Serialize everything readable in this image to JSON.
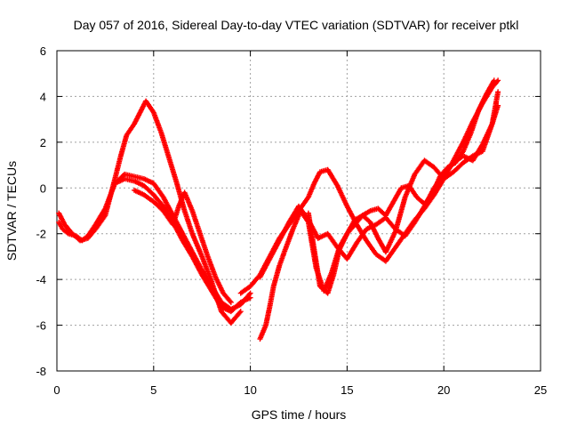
{
  "chart_data": {
    "type": "scatter",
    "title": "Day 057 of 2016, Sidereal Day-to-day VTEC variation (SDTVAR) for receiver ptkl",
    "xlabel": "GPS time / hours",
    "ylabel": "SDTVAR / TECUs",
    "xlim": [
      0,
      25
    ],
    "ylim": [
      -8,
      6
    ],
    "x_ticks": [
      "0",
      "5",
      "10",
      "15",
      "20",
      "25"
    ],
    "y_ticks": [
      "6",
      "4",
      "2",
      "0",
      "-2",
      "-4",
      "-6",
      "-8"
    ],
    "grid": true,
    "marker": "plus",
    "color": "#ff0000",
    "series": [
      {
        "x": [
          0.1,
          0.3,
          0.6,
          1.0,
          1.3,
          1.6,
          2.0,
          2.5,
          3.0,
          3.5,
          4.0,
          4.5,
          5.0,
          5.5,
          6.0,
          6.5,
          7.0,
          7.5,
          8.0,
          8.5,
          9.0,
          9.5,
          10.0
        ],
        "y": [
          -1.5,
          -1.8,
          -2.0,
          -2.1,
          -2.3,
          -2.1,
          -1.6,
          -0.9,
          0.2,
          0.4,
          0.3,
          0.1,
          -0.3,
          -0.8,
          -1.5,
          -2.3,
          -3.0,
          -3.8,
          -4.5,
          -5.2,
          -5.4,
          -5.0,
          -4.8
        ]
      },
      {
        "x": [
          0.1,
          0.4,
          0.8,
          1.2,
          1.6,
          2.0,
          2.5,
          3.0,
          3.3,
          3.6,
          4.0,
          4.3,
          4.6,
          5.0,
          5.4,
          5.8,
          6.2,
          6.6,
          7.0,
          7.5,
          8.0,
          8.5,
          9.0,
          9.5
        ],
        "y": [
          -1.1,
          -1.6,
          -2.0,
          -2.3,
          -2.2,
          -1.8,
          -1.2,
          0.4,
          1.4,
          2.3,
          2.8,
          3.3,
          3.8,
          3.3,
          2.4,
          1.3,
          0.2,
          -1.0,
          -2.0,
          -3.0,
          -4.1,
          -5.4,
          -5.9,
          -5.4
        ]
      },
      {
        "x": [
          3.0,
          3.5,
          4.0,
          4.5,
          5.0,
          5.5,
          6.0,
          6.5,
          7.0,
          7.5,
          8.0,
          8.5,
          9.0,
          9.5,
          10.0
        ],
        "y": [
          0.2,
          0.6,
          0.5,
          0.4,
          0.2,
          -0.4,
          -1.2,
          -2.0,
          -2.8,
          -3.6,
          -4.3,
          -5.0,
          -5.3,
          -5.1,
          -4.6
        ]
      },
      {
        "x": [
          4.0,
          4.5,
          5.0,
          5.5,
          6.0,
          6.3,
          6.6,
          7.0,
          7.4,
          7.8,
          8.2,
          8.6,
          9.0
        ],
        "y": [
          -0.1,
          -0.3,
          -0.6,
          -1.0,
          -1.6,
          -0.8,
          -0.2,
          -1.0,
          -2.0,
          -3.0,
          -3.9,
          -4.6,
          -5.0
        ]
      },
      {
        "x": [
          9.5,
          10.0,
          10.5,
          11.0,
          11.5,
          12.0,
          12.5,
          13.0,
          13.3,
          13.6,
          14.0,
          14.5,
          15.0,
          15.5,
          16.0,
          16.5,
          17.0,
          17.5,
          18.0,
          18.5,
          19.0,
          19.5,
          20.0,
          20.5,
          21.0,
          21.5,
          22.0,
          22.5,
          22.8
        ],
        "y": [
          -4.6,
          -4.3,
          -3.8,
          -3.0,
          -2.2,
          -1.6,
          -1.0,
          -0.4,
          0.2,
          0.7,
          0.8,
          0.1,
          -0.8,
          -1.6,
          -2.3,
          -2.9,
          -3.2,
          -2.6,
          -2.0,
          -1.4,
          -0.9,
          -0.3,
          0.4,
          1.2,
          2.0,
          2.9,
          3.7,
          4.4,
          4.7
        ]
      },
      {
        "x": [
          10.5,
          11.0,
          11.5,
          12.0,
          12.5,
          13.0,
          13.5,
          14.0,
          14.5,
          15.0,
          15.5,
          16.0,
          16.5,
          17.0,
          17.5,
          18.0,
          18.5,
          19.0,
          19.5,
          20.0,
          20.5,
          21.0,
          21.5,
          22.0,
          22.5,
          22.8
        ],
        "y": [
          -3.9,
          -3.1,
          -2.3,
          -1.5,
          -0.8,
          -1.4,
          -2.2,
          -2.0,
          -2.6,
          -3.1,
          -2.4,
          -1.8,
          -1.6,
          -1.3,
          -1.8,
          -2.1,
          -1.5,
          -0.8,
          0.0,
          0.6,
          1.1,
          1.4,
          1.2,
          1.9,
          2.8,
          3.6
        ]
      },
      {
        "x": [
          10.5,
          10.8,
          11.0,
          11.2,
          11.5,
          11.8,
          12.2,
          12.6,
          13.0,
          13.4,
          13.8,
          14.2,
          14.6,
          15.0,
          15.4,
          15.8,
          16.2,
          16.6,
          17.0,
          17.5,
          18.0,
          18.5,
          19.0,
          19.5,
          20.0,
          20.5,
          21.0,
          21.5,
          22.0,
          22.5,
          22.8
        ],
        "y": [
          -6.6,
          -6.0,
          -5.2,
          -4.3,
          -3.4,
          -2.7,
          -1.8,
          -1.0,
          -1.5,
          -3.5,
          -4.5,
          -3.7,
          -2.6,
          -2.0,
          -1.4,
          -1.2,
          -1.5,
          -2.2,
          -2.8,
          -1.9,
          -0.4,
          0.6,
          1.2,
          0.9,
          0.4,
          0.7,
          1.1,
          1.4,
          1.6,
          2.8,
          4.2
        ]
      },
      {
        "x": [
          13.0,
          13.3,
          13.6,
          14.0,
          14.3,
          14.6,
          15.0,
          15.4,
          15.8,
          16.2,
          16.6,
          17.0,
          17.4,
          17.8,
          18.2,
          18.6,
          19.0,
          19.4,
          19.8,
          20.2,
          20.6,
          21.0,
          21.4,
          21.8,
          22.2,
          22.6
        ],
        "y": [
          -1.1,
          -2.7,
          -4.3,
          -4.6,
          -3.8,
          -2.7,
          -2.0,
          -1.6,
          -1.2,
          -1.0,
          -0.9,
          -1.2,
          -0.6,
          0.0,
          0.1,
          -0.4,
          -0.7,
          -0.3,
          0.5,
          0.9,
          1.1,
          1.6,
          2.4,
          3.4,
          4.1,
          4.7
        ]
      }
    ]
  }
}
